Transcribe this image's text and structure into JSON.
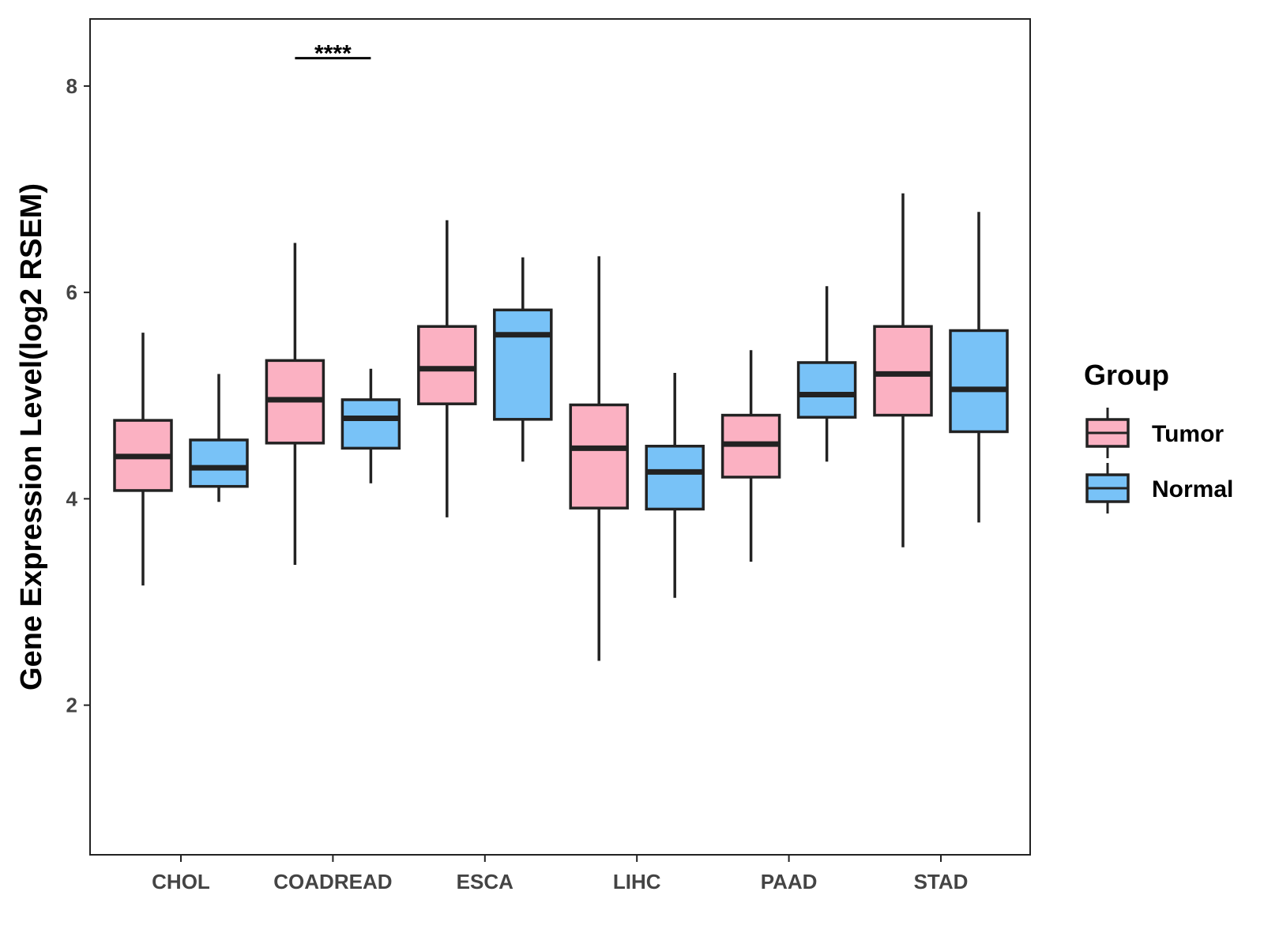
{
  "chart_data": {
    "type": "boxplot",
    "title": "",
    "xlabel": "",
    "ylabel": "Gene Expression Level(log2 RSEM)",
    "ylim": [
      0.55,
      8.65
    ],
    "yticks": [
      2,
      4,
      6,
      8
    ],
    "grid": false,
    "legend_position": "right",
    "legend_title": "Group",
    "categories": [
      "CHOL",
      "COADREAD",
      "ESCA",
      "LIHC",
      "PAAD",
      "STAD"
    ],
    "series": [
      {
        "name": "Tumor",
        "color": "#FBB1C2",
        "boxes": [
          {
            "whisker_low": 3.16,
            "q1": 4.08,
            "median": 4.41,
            "q3": 4.76,
            "whisker_high": 5.61
          },
          {
            "whisker_low": 3.36,
            "q1": 4.54,
            "median": 4.96,
            "q3": 5.34,
            "whisker_high": 6.48
          },
          {
            "whisker_low": 3.82,
            "q1": 4.92,
            "median": 5.26,
            "q3": 5.67,
            "whisker_high": 6.7
          },
          {
            "whisker_low": 2.43,
            "q1": 3.91,
            "median": 4.49,
            "q3": 4.91,
            "whisker_high": 6.35
          },
          {
            "whisker_low": 3.39,
            "q1": 4.21,
            "median": 4.53,
            "q3": 4.81,
            "whisker_high": 5.44
          },
          {
            "whisker_low": 3.53,
            "q1": 4.81,
            "median": 5.21,
            "q3": 5.67,
            "whisker_high": 6.96
          }
        ]
      },
      {
        "name": "Normal",
        "color": "#78C2F7",
        "boxes": [
          {
            "whisker_low": 3.97,
            "q1": 4.12,
            "median": 4.3,
            "q3": 4.57,
            "whisker_high": 5.21
          },
          {
            "whisker_low": 4.15,
            "q1": 4.49,
            "median": 4.78,
            "q3": 4.96,
            "whisker_high": 5.26
          },
          {
            "whisker_low": 4.36,
            "q1": 4.77,
            "median": 5.59,
            "q3": 5.83,
            "whisker_high": 6.34
          },
          {
            "whisker_low": 3.04,
            "q1": 3.9,
            "median": 4.26,
            "q3": 4.51,
            "whisker_high": 5.22
          },
          {
            "whisker_low": 4.36,
            "q1": 4.79,
            "median": 5.01,
            "q3": 5.32,
            "whisker_high": 6.06
          },
          {
            "whisker_low": 3.77,
            "q1": 4.65,
            "median": 5.06,
            "q3": 5.63,
            "whisker_high": 6.78
          }
        ]
      }
    ],
    "annotations": [
      {
        "category": "COADREAD",
        "text": "****",
        "y": 8.27
      }
    ]
  }
}
